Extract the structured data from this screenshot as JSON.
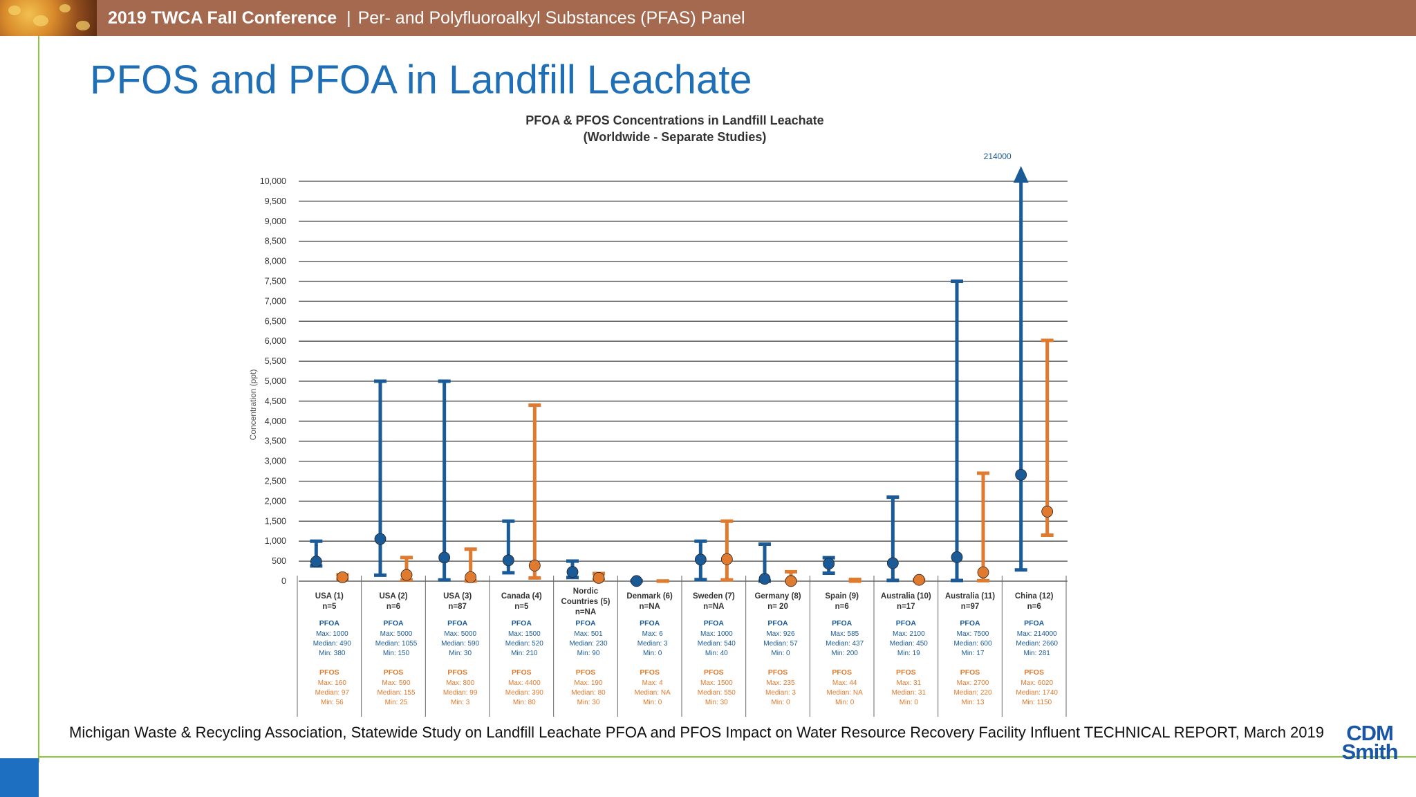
{
  "header": {
    "conference": "2019 TWCA Fall Conference",
    "separator": "|",
    "panel": "Per- and Polyfluoroalkyl Substances (PFAS) Panel"
  },
  "slide_title": "PFOS and PFOA in Landfill Leachate",
  "citation": "Michigan Waste & Recycling Association, Statewide Study on Landfill Leachate PFOA and PFOS Impact on Water Resource Recovery Facility Influent TECHNICAL REPORT, March 2019",
  "logo": {
    "line1": "CDM",
    "line2": "Smith"
  },
  "colors": {
    "pfoa": "#1a5a96",
    "pfos": "#e07a2e",
    "header": "#a4694f",
    "title": "#1f6fb7",
    "accent_green": "#8cc63f"
  },
  "chart_data": {
    "type": "range",
    "title": "PFOA & PFOS Concentrations in Landfill Leachate",
    "subtitle": "(Worldwide - Separate Studies)",
    "ylabel": "Concentration (ppt)",
    "ylim": [
      0,
      10000
    ],
    "yticks": [
      "0",
      "500",
      "1,000",
      "1,500",
      "2,000",
      "2,500",
      "3,000",
      "3,500",
      "4,000",
      "4,500",
      "5,000",
      "5,500",
      "6,000",
      "6,500",
      "7,000",
      "7,500",
      "8,000",
      "8,500",
      "9,000",
      "9,500",
      "10,000"
    ],
    "overflow_label": "214000",
    "grid": true,
    "categories": [
      {
        "name": [
          "USA (1)"
        ],
        "n": "n=5",
        "pfoa": {
          "max": 1000,
          "median": 490,
          "min": 380
        },
        "pfos": {
          "max": 160,
          "median": 97,
          "min": 56
        },
        "pfoa_text": [
          "Max: 1000",
          "Median: 490",
          "Min: 380"
        ],
        "pfos_text": [
          "Max: 160",
          "Median: 97",
          "Min: 56"
        ]
      },
      {
        "name": [
          "USA (2)"
        ],
        "n": "n=6",
        "pfoa": {
          "max": 5000,
          "median": 1055,
          "min": 150
        },
        "pfos": {
          "max": 590,
          "median": 155,
          "min": 25
        },
        "pfoa_text": [
          "Max: 5000",
          "Median: 1055",
          "Min: 150"
        ],
        "pfos_text": [
          "Max: 590",
          "Median: 155",
          "Min: 25"
        ]
      },
      {
        "name": [
          "USA (3)"
        ],
        "n": "n=87",
        "pfoa": {
          "max": 5000,
          "median": 590,
          "min": 30
        },
        "pfos": {
          "max": 800,
          "median": 99,
          "min": 3
        },
        "pfoa_text": [
          "Max: 5000",
          "Median: 590",
          "Min: 30"
        ],
        "pfos_text": [
          "Max: 800",
          "Median: 99",
          "Min: 3"
        ]
      },
      {
        "name": [
          "Canada (4)"
        ],
        "n": "n=5",
        "pfoa": {
          "max": 1500,
          "median": 520,
          "min": 210
        },
        "pfos": {
          "max": 4400,
          "median": 390,
          "min": 80
        },
        "pfoa_text": [
          "Max: 1500",
          "Median: 520",
          "Min: 210"
        ],
        "pfos_text": [
          "Max: 4400",
          "Median: 390",
          "Min: 80"
        ]
      },
      {
        "name": [
          "Nordic",
          "Countries (5)"
        ],
        "n": "n=NA",
        "pfoa": {
          "max": 501,
          "median": 230,
          "min": 90
        },
        "pfos": {
          "max": 190,
          "median": 80,
          "min": 30
        },
        "pfoa_text": [
          "Max: 501",
          "Median: 230",
          "Min: 90"
        ],
        "pfos_text": [
          "Max: 190",
          "Median: 80",
          "Min: 30"
        ]
      },
      {
        "name": [
          "Denmark (6)"
        ],
        "n": "n=NA",
        "pfoa": {
          "max": 6,
          "median": 3,
          "min": 0
        },
        "pfos": {
          "max": 4,
          "median": null,
          "min": 0
        },
        "pfoa_text": [
          "Max: 6",
          "Median: 3",
          "Min: 0"
        ],
        "pfos_text": [
          "Max: 4",
          "Median: NA",
          "Min: 0"
        ]
      },
      {
        "name": [
          "Sweden (7)"
        ],
        "n": "n=NA",
        "pfoa": {
          "max": 1000,
          "median": 540,
          "min": 40
        },
        "pfos": {
          "max": 1500,
          "median": 550,
          "min": 30
        },
        "pfoa_text": [
          "Max: 1000",
          "Median: 540",
          "Min: 40"
        ],
        "pfos_text": [
          "Max: 1500",
          "Median: 550",
          "Min: 30"
        ]
      },
      {
        "name": [
          "Germany (8)"
        ],
        "n": "n= 20",
        "pfoa": {
          "max": 926,
          "median": 57,
          "min": 0
        },
        "pfos": {
          "max": 235,
          "median": 3,
          "min": 0
        },
        "pfoa_text": [
          "Max: 926",
          "Median: 57",
          "Min: 0"
        ],
        "pfos_text": [
          "Max: 235",
          "Median: 3",
          "Min: 0"
        ]
      },
      {
        "name": [
          "Spain (9)"
        ],
        "n": "n=6",
        "pfoa": {
          "max": 585,
          "median": 437,
          "min": 200
        },
        "pfos": {
          "max": 44,
          "median": null,
          "min": 0
        },
        "pfoa_text": [
          "Max: 585",
          "Median: 437",
          "Min: 200"
        ],
        "pfos_text": [
          "Max: 44",
          "Median: NA",
          "Min: 0"
        ]
      },
      {
        "name": [
          "Australia (10)"
        ],
        "n": "n=17",
        "pfoa": {
          "max": 2100,
          "median": 450,
          "min": 19
        },
        "pfos": {
          "max": 31,
          "median": 31,
          "min": 0
        },
        "pfoa_text": [
          "Max: 2100",
          "Median: 450",
          "Min: 19"
        ],
        "pfos_text": [
          "Max: 31",
          "Median: 31",
          "Min: 0"
        ]
      },
      {
        "name": [
          "Australia (11)"
        ],
        "n": "n=97",
        "pfoa": {
          "max": 7500,
          "median": 600,
          "min": 17
        },
        "pfos": {
          "max": 2700,
          "median": 220,
          "min": 13
        },
        "pfoa_text": [
          "Max: 7500",
          "Median: 600",
          "Min: 17"
        ],
        "pfos_text": [
          "Max: 2700",
          "Median: 220",
          "Min: 13"
        ]
      },
      {
        "name": [
          "China (12)"
        ],
        "n": "n=6",
        "pfoa": {
          "max": 214000,
          "median": 2660,
          "min": 281
        },
        "pfos": {
          "max": 6020,
          "median": 1740,
          "min": 1150
        },
        "pfoa_text": [
          "Max: 214000",
          "Median: 2660",
          "Min: 281"
        ],
        "pfos_text": [
          "Max: 6020",
          "Median: 1740",
          "Min: 1150"
        ]
      }
    ],
    "pfoa_label": "PFOA",
    "pfos_label": "PFOS"
  }
}
